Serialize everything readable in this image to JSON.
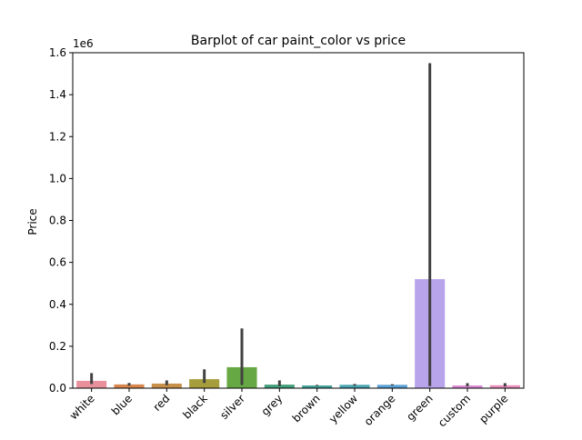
{
  "chart_data": {
    "type": "bar",
    "title": "Barplot of car paint_color vs price",
    "xlabel": "",
    "ylabel": "Price",
    "y_offset_label": "1e6",
    "ylim": [
      0,
      1600000
    ],
    "y_ticks": [
      0,
      200000,
      400000,
      600000,
      800000,
      1000000,
      1200000,
      1400000,
      1600000
    ],
    "y_tick_labels": [
      "0.0",
      "0.2",
      "0.4",
      "0.6",
      "0.8",
      "1.0",
      "1.2",
      "1.4",
      "1.6"
    ],
    "categories": [
      "white",
      "blue",
      "red",
      "black",
      "silver",
      "grey",
      "brown",
      "yellow",
      "orange",
      "green",
      "custom",
      "purple"
    ],
    "values": [
      35000,
      18000,
      22000,
      43000,
      100000,
      17000,
      13000,
      16000,
      16000,
      520000,
      13000,
      14000
    ],
    "error_low": [
      20000,
      12000,
      14000,
      25000,
      15000,
      10000,
      11000,
      12000,
      13000,
      10000,
      9000,
      8000
    ],
    "error_high": [
      72000,
      25000,
      37000,
      90000,
      285000,
      37000,
      16000,
      20000,
      19000,
      1550000,
      24000,
      24000
    ],
    "colors": [
      "#e8919d",
      "#d8854e",
      "#c7914a",
      "#a69d3c",
      "#66a944",
      "#43a07c",
      "#45a39c",
      "#47a4b1",
      "#5aa1d6",
      "#b8a4ea",
      "#dd8ad6",
      "#e88fbc"
    ],
    "error_color": "#424242",
    "grid": false,
    "legend": "none"
  }
}
